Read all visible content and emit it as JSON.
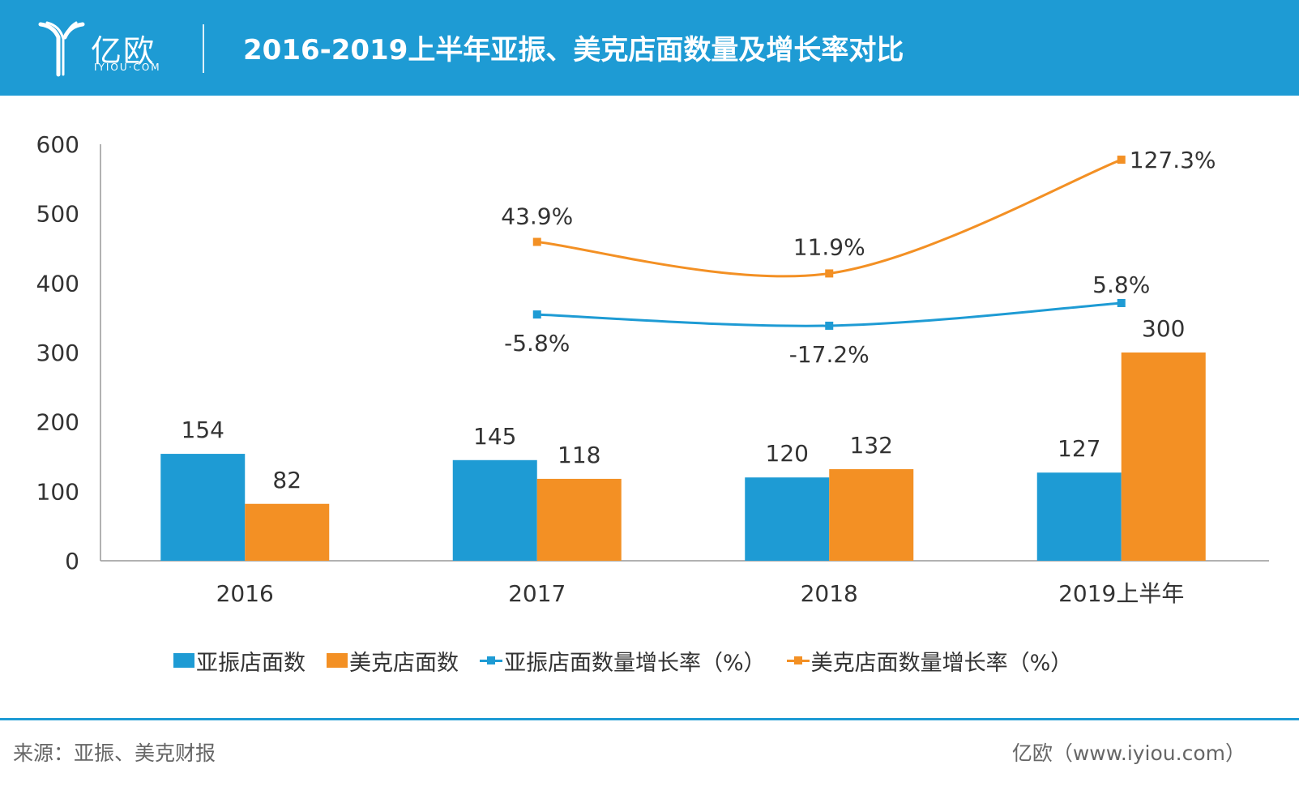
{
  "header": {
    "logo_cn": "亿欧",
    "logo_en": "IYIOU·COM",
    "title": "2016-2019上半年亚振、美克店面数量及增长率对比"
  },
  "colors": {
    "header_bg": "#1e9bd4",
    "series_blue": "#1e9bd4",
    "series_orange": "#f39024",
    "text": "#333333"
  },
  "chart_data": {
    "type": "bar",
    "categories": [
      "2016",
      "2017",
      "2018",
      "2019上半年"
    ],
    "ylim": [
      0,
      600
    ],
    "yticks": [
      "0",
      "100",
      "200",
      "300",
      "400",
      "500",
      "600"
    ],
    "series": [
      {
        "name": "亚振店面数",
        "type": "bar",
        "values": [
          154,
          145,
          120,
          127
        ],
        "labels": [
          "154",
          "145",
          "120",
          "127"
        ]
      },
      {
        "name": "美克店面数",
        "type": "bar",
        "values": [
          82,
          118,
          132,
          300
        ],
        "labels": [
          "82",
          "118",
          "132",
          "300"
        ]
      },
      {
        "name": "亚振店面数量增长率（%）",
        "type": "line",
        "values": [
          null,
          -5.8,
          -17.2,
          5.8
        ],
        "labels": [
          null,
          "-5.8%",
          "-17.2%",
          "5.8%"
        ]
      },
      {
        "name": "美克店面数量增长率（%）",
        "type": "line",
        "values": [
          null,
          43.9,
          11.9,
          127.3
        ],
        "labels": [
          null,
          "43.9%",
          "11.9%",
          "127.3%"
        ]
      }
    ],
    "legend": "bottom"
  },
  "footer": {
    "source": "来源：亚振、美克财报",
    "site": "亿欧（www.iyiou.com）"
  }
}
